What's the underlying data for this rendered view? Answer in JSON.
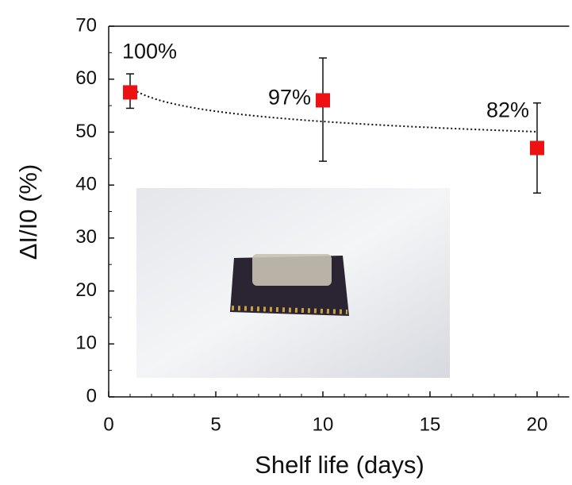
{
  "chart_data": {
    "type": "scatter",
    "x_label": "Shelf life (days)",
    "y_label": "ΔI/I0 (%)",
    "x": [
      1,
      10,
      20
    ],
    "series": [
      {
        "color": "#ee1111",
        "values": [
          57.5,
          56,
          47
        ],
        "error_plus": [
          3.5,
          8,
          8.5
        ],
        "error_minus": [
          3,
          11.5,
          8.5
        ]
      }
    ],
    "annotations": [
      "100%",
      "97%",
      "82%"
    ],
    "trendline": "logarithmic",
    "xlim": [
      0,
      21.5
    ],
    "xticks": [
      0,
      5,
      10,
      15,
      20
    ],
    "xminor": 1,
    "ylim": [
      0,
      70
    ],
    "yticks": [
      0,
      10,
      20,
      30,
      40,
      50,
      60,
      70
    ],
    "yminor": 5
  }
}
